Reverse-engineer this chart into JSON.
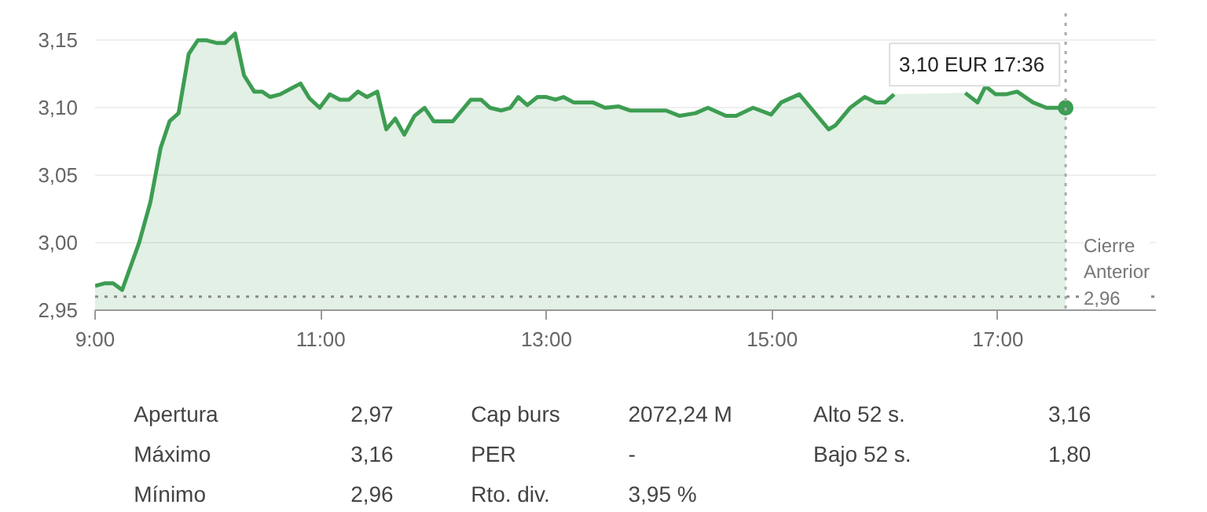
{
  "chart_data": {
    "type": "area",
    "x": [
      9.0,
      9.09,
      9.16,
      9.24,
      9.39,
      9.49,
      9.58,
      9.66,
      9.74,
      9.83,
      9.91,
      9.99,
      10.08,
      10.15,
      10.24,
      10.32,
      10.41,
      10.48,
      10.55,
      10.64,
      10.73,
      10.82,
      10.9,
      10.99,
      11.08,
      11.17,
      11.25,
      11.33,
      11.41,
      11.5,
      11.58,
      11.66,
      11.74,
      11.83,
      11.92,
      12.0,
      12.08,
      12.17,
      12.25,
      12.33,
      12.42,
      12.5,
      12.6,
      12.68,
      12.75,
      12.83,
      12.92,
      13.0,
      13.08,
      13.15,
      13.24,
      13.41,
      13.52,
      13.64,
      13.74,
      14.06,
      14.18,
      14.32,
      14.43,
      14.59,
      14.68,
      14.83,
      14.99,
      15.08,
      15.24,
      15.5,
      15.56,
      15.69,
      15.82,
      15.92,
      16.0,
      16.08,
      16.4,
      16.71,
      16.82,
      16.89,
      16.98,
      17.07,
      17.17,
      17.31,
      17.43,
      17.52,
      17.6
    ],
    "series": [
      {
        "color": "#3d9d52",
        "values": [
          2.968,
          2.97,
          2.97,
          2.965,
          3.0,
          3.03,
          3.07,
          3.09,
          3.096,
          3.14,
          3.15,
          3.15,
          3.148,
          3.148,
          3.155,
          3.124,
          3.112,
          3.112,
          3.108,
          3.11,
          3.114,
          3.118,
          3.107,
          3.1,
          3.11,
          3.106,
          3.106,
          3.112,
          3.108,
          3.112,
          3.084,
          3.092,
          3.08,
          3.094,
          3.1,
          3.09,
          3.09,
          3.09,
          3.098,
          3.106,
          3.106,
          3.1,
          3.098,
          3.1,
          3.108,
          3.102,
          3.108,
          3.108,
          3.106,
          3.108,
          3.104,
          3.104,
          3.1,
          3.101,
          3.098,
          3.098,
          3.094,
          3.096,
          3.1,
          3.094,
          3.094,
          3.1,
          3.095,
          3.104,
          3.11,
          3.084,
          3.087,
          3.1,
          3.108,
          3.104,
          3.104,
          3.11,
          null,
          3.111,
          3.104,
          3.116,
          3.11,
          3.11,
          3.112,
          3.104,
          3.1,
          3.1,
          3.1
        ]
      }
    ],
    "xlim": [
      9.0,
      18.4
    ],
    "ylim": [
      2.95,
      3.17
    ],
    "xticks": [
      {
        "value": 9,
        "label": "9:00"
      },
      {
        "value": 11,
        "label": "11:00"
      },
      {
        "value": 13,
        "label": "13:00"
      },
      {
        "value": 15,
        "label": "15:00"
      },
      {
        "value": 17,
        "label": "17:00"
      }
    ],
    "yticks": [
      {
        "value": 2.95,
        "label": "2,95"
      },
      {
        "value": 3.0,
        "label": "3,00"
      },
      {
        "value": 3.05,
        "label": "3,05"
      },
      {
        "value": 3.1,
        "label": "3,10"
      },
      {
        "value": 3.15,
        "label": "3,15"
      }
    ],
    "grid": "y",
    "line_style": "solid",
    "ref_lines": [
      {
        "axis": "y",
        "value": 2.96,
        "label": "Cierre\nAnterior\n2,96",
        "line_style": "dotted",
        "color": "#888888"
      },
      {
        "axis": "x",
        "value": 17.6,
        "line_style": "dotted",
        "color": "#aaaaaa"
      }
    ],
    "annotations": [
      {
        "text": "3,10 EUR  17:36",
        "x": 17.6,
        "y": 3.1
      },
      "Apertura",
      "2,97",
      "Cap burs",
      "2072,24 M",
      "Alto 52 s.",
      "3,16",
      "Máximo",
      "3,16",
      "PER",
      "-",
      "Bajo 52 s.",
      "1,80",
      "Mínimo",
      "2,96",
      "Rto. div.",
      "3,95 %"
    ]
  }
}
